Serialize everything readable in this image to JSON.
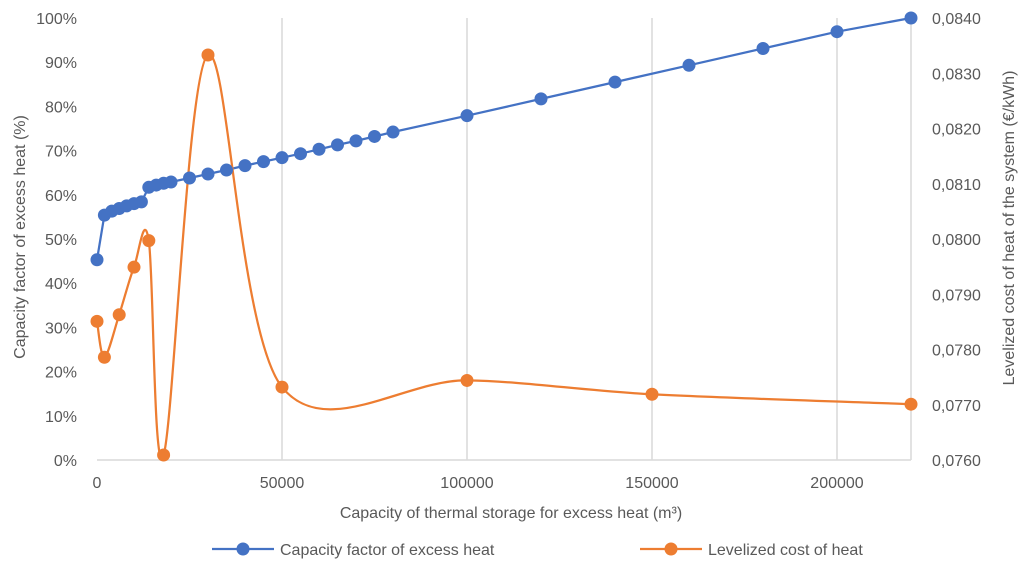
{
  "chart_data": {
    "type": "line",
    "title": "",
    "xlabel": "Capacity of thermal storage for excess heat (m³)",
    "ylabel_left": "Capacity factor of excess heat (%)",
    "ylabel_right": "Levelized cost of heat of the system (€/kWh)",
    "xlim": [
      0,
      220000
    ],
    "x_ticks": [
      "0",
      "50000",
      "100000",
      "150000",
      "200000"
    ],
    "x_tick_values": [
      0,
      50000,
      100000,
      150000,
      200000
    ],
    "ylim_left": [
      0,
      100
    ],
    "y_ticks_left": [
      "0%",
      "10%",
      "20%",
      "30%",
      "40%",
      "50%",
      "60%",
      "70%",
      "80%",
      "90%",
      "100%"
    ],
    "y_tick_values_left": [
      0,
      10,
      20,
      30,
      40,
      50,
      60,
      70,
      80,
      90,
      100
    ],
    "ylim_right": [
      0.076,
      0.084
    ],
    "y_ticks_right": [
      "0,0760",
      "0,0770",
      "0,0780",
      "0,0790",
      "0,0800",
      "0,0810",
      "0,0820",
      "0,0830",
      "0,0840"
    ],
    "y_tick_values_right": [
      0.076,
      0.077,
      0.078,
      0.079,
      0.08,
      0.081,
      0.082,
      0.083,
      0.084
    ],
    "grid": "vertical",
    "legend_position": "bottom",
    "colors": {
      "series1": "#4472C4",
      "series2": "#ED7D31",
      "grid": "#D9D9D9"
    },
    "series": [
      {
        "name": "Capacity factor of excess heat",
        "axis": "left",
        "smooth": false,
        "x": [
          0,
          2000,
          4000,
          6000,
          8000,
          10000,
          12000,
          14000,
          16000,
          18000,
          20000,
          25000,
          30000,
          35000,
          40000,
          45000,
          50000,
          55000,
          60000,
          65000,
          70000,
          75000,
          80000,
          100000,
          120000,
          140000,
          160000,
          180000,
          200000,
          220000
        ],
        "y": [
          45.3,
          55.4,
          56.3,
          56.9,
          57.5,
          58.0,
          58.4,
          61.7,
          62.2,
          62.6,
          62.9,
          63.8,
          64.7,
          65.6,
          66.6,
          67.5,
          68.4,
          69.3,
          70.3,
          71.3,
          72.2,
          73.2,
          74.2,
          77.9,
          81.7,
          85.5,
          89.3,
          93.1,
          96.9,
          100.0
        ]
      },
      {
        "name": "Levelized cost of heat",
        "axis": "right",
        "smooth": true,
        "x": [
          0,
          2000,
          6000,
          10000,
          14000,
          18000,
          30000,
          50000,
          100000,
          150000,
          220000
        ],
        "y": [
          0.07851,
          0.07786,
          0.07863,
          0.07949,
          0.07997,
          0.07609,
          0.08333,
          0.07732,
          0.07744,
          0.07719,
          0.07701
        ]
      }
    ]
  }
}
